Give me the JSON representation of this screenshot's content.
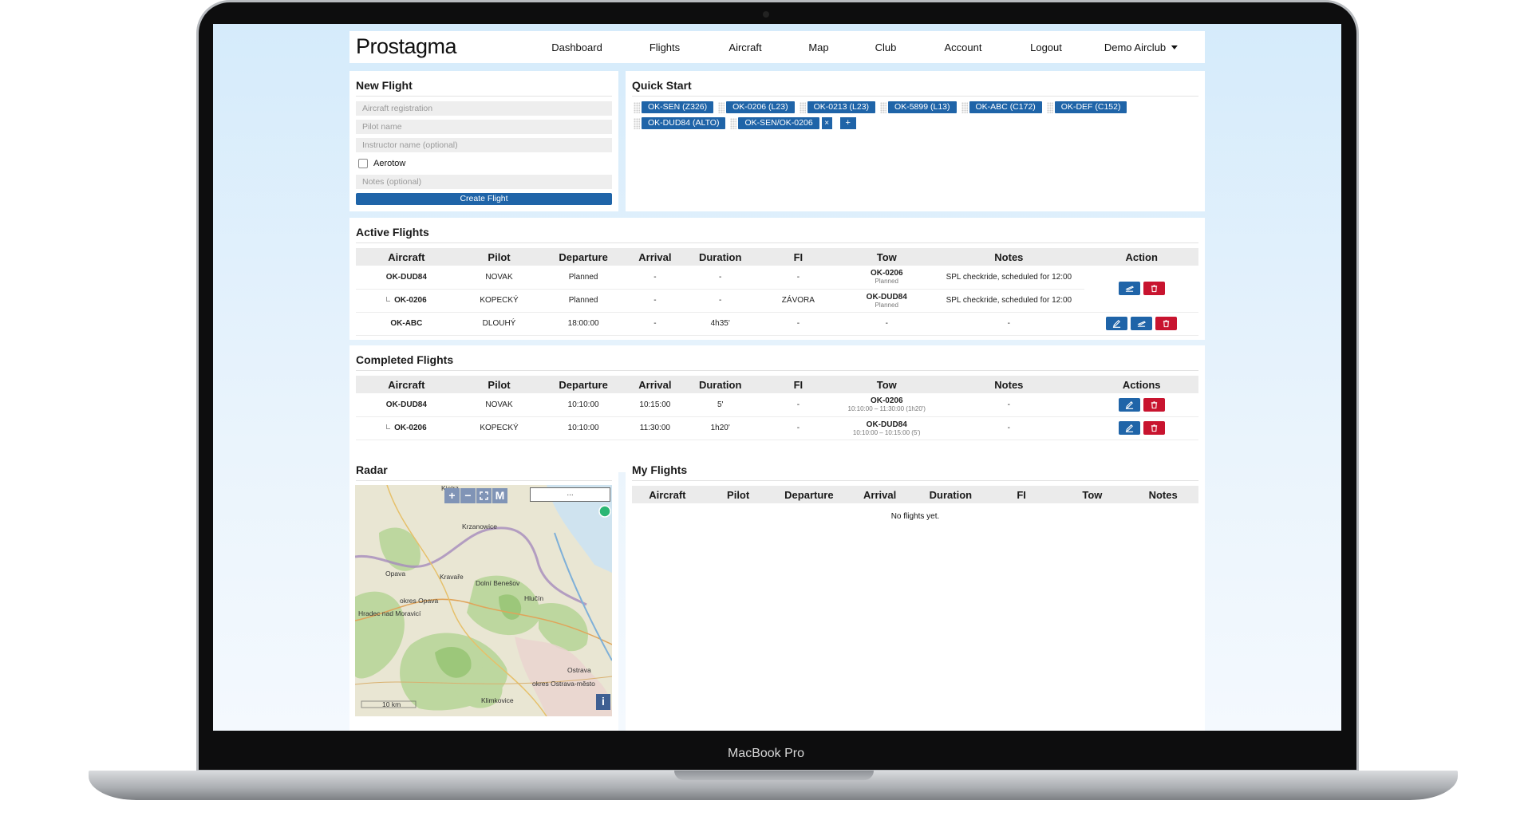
{
  "device_label": "MacBook Pro",
  "nav": {
    "logo": "Prostagma",
    "links": [
      "Dashboard",
      "Flights",
      "Aircraft",
      "Map",
      "Club",
      "Account",
      "Logout"
    ],
    "club": "Demo Airclub"
  },
  "new_flight": {
    "title": "New Flight",
    "fields": [
      "Aircraft registration",
      "Pilot name",
      "Instructor name (optional)"
    ],
    "checkbox": "Aerotow",
    "notes": "Notes (optional)",
    "button": "Create Flight"
  },
  "quick_start": {
    "title": "Quick Start",
    "chips": [
      "OK-SEN (Z326)",
      "OK-0206 (L23)",
      "OK-0213 (L23)",
      "OK-5899 (L13)",
      "OK-ABC (C172)",
      "OK-DEF (C152)",
      "OK-DUD84 (ALTO)",
      "OK-SEN/OK-0206"
    ],
    "remove": "×",
    "add": "+"
  },
  "active_flights": {
    "title": "Active Flights",
    "columns": [
      "Aircraft",
      "Pilot",
      "Departure",
      "Arrival",
      "Duration",
      "FI",
      "Tow",
      "Notes",
      "Action"
    ],
    "rows": [
      {
        "cells": [
          "OK-DUD84",
          "NOVAK",
          "Planned",
          "-",
          "-",
          "-",
          {
            "main": "OK-0206",
            "sub": "Planned"
          },
          "SPL checkride, scheduled for 12:00"
        ]
      },
      {
        "child": true,
        "cells": [
          "OK-0206",
          "KOPECKÝ",
          "Planned",
          "-",
          "-",
          "ZÁVORA",
          {
            "main": "OK-DUD84",
            "sub": "Planned"
          },
          "SPL checkride, scheduled for 12:00"
        ]
      },
      {
        "cells": [
          "OK-ABC",
          "DLOUHÝ",
          "18:00:00",
          "-",
          "4h35'",
          "-",
          "-",
          "-"
        ]
      }
    ]
  },
  "completed_flights": {
    "title": "Completed Flights",
    "columns": [
      "Aircraft",
      "Pilot",
      "Departure",
      "Arrival",
      "Duration",
      "FI",
      "Tow",
      "Notes",
      "Actions"
    ],
    "rows": [
      {
        "cells": [
          "OK-DUD84",
          "NOVAK",
          "10:10:00",
          "10:15:00",
          "5'",
          "-",
          {
            "main": "OK-0206",
            "sub": "10:10:00 – 11:30:00 (1h20')"
          },
          "-"
        ]
      },
      {
        "child": true,
        "cells": [
          "OK-0206",
          "KOPECKÝ",
          "10:10:00",
          "11:30:00",
          "1h20'",
          "-",
          {
            "main": "OK-DUD84",
            "sub": "10:10:00 – 10:15:00 (5')"
          },
          "-"
        ]
      }
    ]
  },
  "radar": {
    "title": "Radar",
    "controls": [
      "+",
      "−",
      "M"
    ],
    "search": "...",
    "labels": [
      "Kietrz",
      "Krzanowice",
      "Opava",
      "Kravaře",
      "Dolní Benešov",
      "okres Opava",
      "Hlučín",
      "Hradec nad Moravicí",
      "Ostrava",
      "okres Ostrava-město",
      "Klimkovice"
    ],
    "scale": "10 km",
    "info": "i"
  },
  "my_flights": {
    "title": "My Flights",
    "columns": [
      "Aircraft",
      "Pilot",
      "Departure",
      "Arrival",
      "Duration",
      "FI",
      "Tow",
      "Notes"
    ],
    "empty": "No flights yet."
  }
}
